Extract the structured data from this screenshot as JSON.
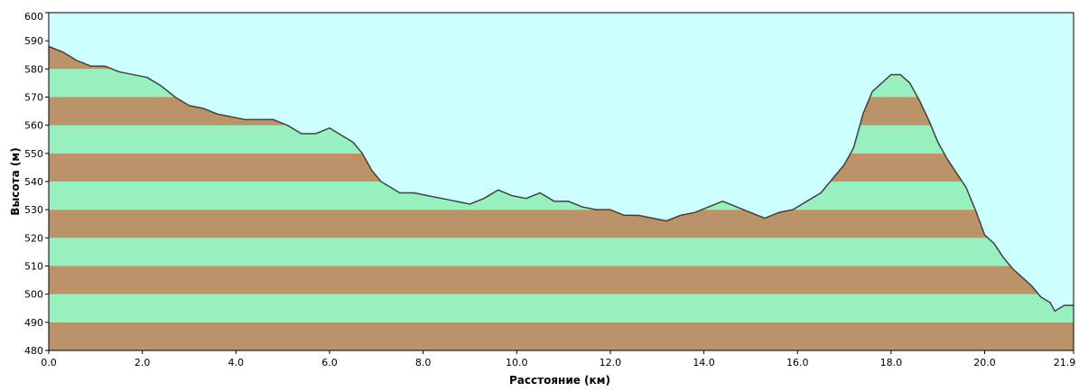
{
  "chart_data": {
    "type": "area",
    "title": "",
    "xlabel": "Расстояние   (км)",
    "ylabel": "Высота (м)",
    "xlim": [
      0,
      21.9
    ],
    "ylim": [
      480,
      600
    ],
    "x_ticks": [
      0,
      2,
      4,
      6,
      8,
      10,
      12,
      14,
      16,
      18,
      20,
      21.9
    ],
    "x_tick_labels": [
      "0.0",
      "2.0",
      "4.0",
      "6.0",
      "8.0",
      "10.0",
      "12.0",
      "14.0",
      "16.0",
      "18.0",
      "20.0",
      "21.9"
    ],
    "y_ticks": [
      480,
      490,
      500,
      510,
      520,
      530,
      540,
      550,
      560,
      570,
      580,
      590,
      600
    ],
    "y_tick_labels": [
      "480",
      "490",
      "500",
      "510",
      "520",
      "530",
      "540",
      "550",
      "560",
      "570",
      "580",
      "590",
      "600"
    ],
    "grid": false,
    "legend": "none",
    "colors": {
      "background": "#ccffff",
      "band_brown": "#bb9368",
      "band_green": "#98f0c0",
      "profile_line": "#404040",
      "axis": "#000000"
    },
    "series": [
      {
        "x": [
          0.0,
          0.3,
          0.6,
          0.9,
          1.2,
          1.5,
          1.8,
          2.1,
          2.4,
          2.7,
          3.0,
          3.3,
          3.6,
          3.9,
          4.2,
          4.5,
          4.8,
          5.1,
          5.4,
          5.7,
          6.0,
          6.3,
          6.5,
          6.7,
          6.9,
          7.1,
          7.3,
          7.5,
          7.8,
          8.1,
          8.4,
          8.7,
          9.0,
          9.3,
          9.6,
          9.9,
          10.2,
          10.5,
          10.8,
          11.1,
          11.4,
          11.7,
          12.0,
          12.3,
          12.6,
          12.9,
          13.2,
          13.5,
          13.8,
          14.1,
          14.4,
          14.7,
          15.0,
          15.3,
          15.6,
          15.9,
          16.2,
          16.5,
          16.8,
          17.0,
          17.2,
          17.4,
          17.6,
          17.8,
          18.0,
          18.2,
          18.4,
          18.6,
          18.8,
          19.0,
          19.2,
          19.4,
          19.6,
          19.8,
          20.0,
          20.2,
          20.4,
          20.6,
          20.8,
          21.0,
          21.2,
          21.4,
          21.5,
          21.6,
          21.7,
          21.9
        ],
        "y": [
          588,
          586,
          583,
          581,
          581,
          579,
          578,
          577,
          574,
          570,
          567,
          566,
          564,
          563,
          562,
          562,
          562,
          560,
          557,
          557,
          559,
          556,
          554,
          550,
          544,
          540,
          538,
          536,
          536,
          535,
          534,
          533,
          532,
          534,
          537,
          535,
          534,
          536,
          533,
          533,
          531,
          530,
          530,
          528,
          528,
          527,
          526,
          528,
          529,
          531,
          533,
          531,
          529,
          527,
          529,
          530,
          533,
          536,
          542,
          546,
          552,
          564,
          572,
          575,
          578,
          578,
          575,
          569,
          562,
          554,
          548,
          543,
          538,
          530,
          521,
          518,
          513,
          509,
          506,
          503,
          499,
          497,
          494,
          495,
          496,
          496
        ]
      }
    ]
  }
}
